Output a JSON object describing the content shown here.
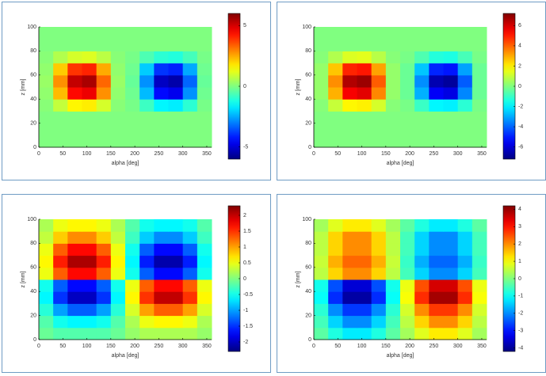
{
  "chart_data": [
    {
      "type": "heatmap",
      "xlabel": "alpha [deg]",
      "ylabel": "z [mm]",
      "colormap": "jet",
      "colorbar": true,
      "xlim": [
        0,
        360
      ],
      "ylim": [
        0,
        100
      ],
      "xticks": [
        0,
        50,
        100,
        150,
        200,
        250,
        300,
        350
      ],
      "yticks": [
        0,
        20,
        40,
        60,
        80,
        100
      ],
      "clim": [
        -6,
        6
      ],
      "cticks": [
        -5,
        0,
        5
      ],
      "x": [
        15,
        45,
        75,
        105,
        135,
        165,
        195,
        225,
        255,
        285,
        315,
        345
      ],
      "y": [
        5,
        15,
        25,
        35,
        45,
        55,
        65,
        75,
        85,
        95
      ],
      "z": [
        [
          0,
          0,
          0,
          0,
          0,
          0,
          0,
          0,
          0,
          0,
          0,
          0
        ],
        [
          0,
          0,
          0,
          0,
          0,
          0,
          0,
          0,
          0,
          0,
          0,
          0
        ],
        [
          0,
          0,
          0,
          0,
          0,
          0,
          0,
          0,
          0,
          0,
          0,
          0
        ],
        [
          0.1,
          0.8,
          1.6,
          1.7,
          1.0,
          0.1,
          -0.1,
          -0.8,
          -1.6,
          -1.7,
          -1.0,
          -0.1
        ],
        [
          0.2,
          2.3,
          4.4,
          4.7,
          2.8,
          0.2,
          -0.2,
          -2.3,
          -4.4,
          -4.7,
          -2.8,
          -0.2
        ],
        [
          0.3,
          2.8,
          5.2,
          5.5,
          3.3,
          0.3,
          -0.3,
          -2.8,
          -5.2,
          -5.5,
          -3.3,
          -0.3
        ],
        [
          0.2,
          2.1,
          3.9,
          4.1,
          2.5,
          0.2,
          -0.2,
          -2.1,
          -3.9,
          -4.1,
          -2.5,
          -0.2
        ],
        [
          0.1,
          0.6,
          1.0,
          1.1,
          0.7,
          0.1,
          -0.1,
          -0.6,
          -1.0,
          -1.1,
          -0.7,
          -0.1
        ],
        [
          0,
          0,
          0,
          0,
          0,
          0,
          0,
          0,
          0,
          0,
          0,
          0
        ],
        [
          0,
          0,
          0,
          0,
          0,
          0,
          0,
          0,
          0,
          0,
          0,
          0
        ]
      ]
    },
    {
      "type": "heatmap",
      "xlabel": "alpha [deg]",
      "ylabel": "z [mm]",
      "colormap": "jet",
      "colorbar": true,
      "xlim": [
        0,
        360
      ],
      "ylim": [
        0,
        100
      ],
      "xticks": [
        0,
        50,
        100,
        150,
        200,
        250,
        300,
        350
      ],
      "yticks": [
        0,
        20,
        40,
        60,
        80,
        100
      ],
      "clim": [
        -7.2,
        7.2
      ],
      "cticks": [
        -6,
        -4,
        -2,
        0,
        2,
        4,
        6
      ],
      "x": [
        15,
        45,
        75,
        105,
        135,
        165,
        195,
        225,
        255,
        285,
        315,
        345
      ],
      "y": [
        5,
        15,
        25,
        35,
        45,
        55,
        65,
        75,
        85,
        95
      ],
      "z": [
        [
          0,
          0,
          0,
          0,
          0,
          0,
          0,
          0,
          0,
          0,
          0,
          0
        ],
        [
          0,
          0,
          0,
          0,
          0,
          0,
          0,
          0,
          0,
          0,
          0,
          0
        ],
        [
          0,
          0,
          0,
          0,
          0,
          0,
          0,
          0,
          0,
          0,
          0,
          0
        ],
        [
          0.1,
          1.0,
          1.9,
          2.0,
          1.2,
          0.1,
          -0.1,
          -1.0,
          -1.9,
          -2.0,
          -1.2,
          -0.1
        ],
        [
          0.3,
          2.9,
          5.5,
          5.8,
          3.5,
          0.3,
          -0.3,
          -2.9,
          -5.5,
          -5.8,
          -3.5,
          -0.3
        ],
        [
          0.3,
          3.4,
          6.5,
          6.8,
          4.1,
          0.3,
          -0.3,
          -3.4,
          -6.5,
          -6.8,
          -4.1,
          -0.3
        ],
        [
          0.3,
          2.6,
          4.9,
          5.1,
          3.1,
          0.3,
          -0.3,
          -2.6,
          -4.9,
          -5.1,
          -3.1,
          -0.3
        ],
        [
          0.1,
          0.7,
          1.3,
          1.4,
          0.8,
          0.1,
          -0.1,
          -0.7,
          -1.3,
          -1.4,
          -0.8,
          -0.1
        ],
        [
          0,
          0,
          0,
          0,
          0,
          0,
          0,
          0,
          0,
          0,
          0,
          0
        ],
        [
          0,
          0,
          0,
          0,
          0,
          0,
          0,
          0,
          0,
          0,
          0,
          0
        ]
      ]
    },
    {
      "type": "heatmap",
      "xlabel": "alpha [deg]",
      "ylabel": "z [mm]",
      "colormap": "jet",
      "colorbar": true,
      "xlim": [
        0,
        360
      ],
      "ylim": [
        0,
        100
      ],
      "xticks": [
        0,
        50,
        100,
        150,
        200,
        250,
        300,
        350
      ],
      "yticks": [
        0,
        20,
        40,
        60,
        80,
        100
      ],
      "clim": [
        -2.3,
        2.3
      ],
      "cticks": [
        -2,
        -1.5,
        -1,
        -0.5,
        0,
        0.5,
        1,
        1.5,
        2
      ],
      "x": [
        15,
        45,
        75,
        105,
        135,
        165,
        195,
        225,
        255,
        285,
        315,
        345
      ],
      "y": [
        5,
        15,
        25,
        35,
        45,
        55,
        65,
        75,
        85,
        95
      ],
      "z": [
        [
          -0.1,
          -0.2,
          -0.2,
          -0.2,
          -0.2,
          -0.1,
          0.1,
          0.2,
          0.2,
          0.2,
          0.2,
          0.1
        ],
        [
          -0.2,
          -0.5,
          -0.6,
          -0.6,
          -0.5,
          -0.2,
          0.2,
          0.5,
          0.6,
          0.6,
          0.5,
          0.2
        ],
        [
          -0.4,
          -1.0,
          -1.3,
          -1.3,
          -1.0,
          -0.4,
          0.4,
          1.0,
          1.3,
          1.3,
          1.0,
          0.4
        ],
        [
          -0.6,
          -1.5,
          -2.0,
          -2.0,
          -1.5,
          -0.6,
          0.6,
          1.5,
          2.0,
          2.0,
          1.5,
          0.6
        ],
        [
          -0.5,
          -1.3,
          -1.7,
          -1.7,
          -1.3,
          -0.5,
          0.5,
          1.3,
          1.7,
          1.7,
          1.3,
          0.5
        ],
        [
          0.5,
          1.3,
          1.7,
          1.7,
          1.3,
          0.5,
          -0.5,
          -1.3,
          -1.7,
          -1.7,
          -1.3,
          -0.5
        ],
        [
          0.6,
          1.6,
          2.1,
          2.1,
          1.6,
          0.6,
          -0.6,
          -1.6,
          -2.1,
          -2.1,
          -1.6,
          -0.6
        ],
        [
          0.5,
          1.3,
          1.7,
          1.7,
          1.3,
          0.5,
          -0.5,
          -1.3,
          -1.7,
          -1.7,
          -1.3,
          -0.5
        ],
        [
          0.3,
          0.8,
          1.1,
          1.1,
          0.8,
          0.3,
          -0.3,
          -0.8,
          -1.1,
          -1.1,
          -0.8,
          -0.3
        ],
        [
          0.2,
          0.5,
          0.6,
          0.6,
          0.5,
          0.2,
          -0.2,
          -0.5,
          -0.6,
          -0.6,
          -0.5,
          -0.2
        ]
      ]
    },
    {
      "type": "heatmap",
      "xlabel": "alpha [deg]",
      "ylabel": "z [mm]",
      "colormap": "jet",
      "colorbar": true,
      "xlim": [
        0,
        360
      ],
      "ylim": [
        0,
        100
      ],
      "xticks": [
        0,
        50,
        100,
        150,
        200,
        250,
        300,
        350
      ],
      "yticks": [
        0,
        20,
        40,
        60,
        80,
        100
      ],
      "clim": [
        -4.2,
        4.2
      ],
      "cticks": [
        -4,
        -3,
        -2,
        -1,
        0,
        1,
        2,
        3,
        4
      ],
      "x": [
        15,
        45,
        75,
        105,
        135,
        165,
        195,
        225,
        255,
        285,
        315,
        345
      ],
      "y": [
        5,
        15,
        25,
        35,
        45,
        55,
        65,
        75,
        85,
        95
      ],
      "z": [
        [
          -0.3,
          -0.8,
          -1.2,
          -1.2,
          -0.8,
          -0.3,
          0.3,
          0.8,
          1.2,
          1.2,
          0.8,
          0.3
        ],
        [
          -0.5,
          -1.4,
          -2.0,
          -2.0,
          -1.4,
          -0.5,
          0.5,
          1.4,
          2.0,
          2.0,
          1.4,
          0.5
        ],
        [
          -0.7,
          -2.0,
          -2.7,
          -2.7,
          -2.0,
          -0.7,
          0.7,
          2.0,
          2.7,
          2.7,
          2.0,
          0.7
        ],
        [
          -1.0,
          -2.8,
          -3.9,
          -3.9,
          -2.8,
          -1.0,
          1.0,
          2.8,
          3.9,
          3.9,
          2.8,
          1.0
        ],
        [
          -0.9,
          -2.5,
          -3.5,
          -3.5,
          -2.5,
          -0.9,
          0.9,
          2.5,
          3.5,
          3.5,
          2.5,
          0.9
        ],
        [
          0.5,
          1.4,
          2.0,
          2.0,
          1.4,
          0.5,
          -0.5,
          -1.4,
          -2.0,
          -2.0,
          -1.4,
          -0.5
        ],
        [
          0.6,
          1.7,
          2.3,
          2.3,
          1.7,
          0.6,
          -0.6,
          -1.7,
          -2.3,
          -2.3,
          -1.7,
          -0.6
        ],
        [
          0.5,
          1.4,
          2.0,
          2.0,
          1.4,
          0.5,
          -0.5,
          -1.4,
          -2.0,
          -2.0,
          -1.4,
          -0.5
        ],
        [
          0.5,
          1.4,
          2.0,
          2.0,
          1.4,
          0.5,
          -0.5,
          -1.4,
          -2.0,
          -2.0,
          -1.4,
          -0.5
        ],
        [
          0.3,
          0.8,
          1.2,
          1.2,
          0.8,
          0.3,
          -0.3,
          -0.8,
          -1.2,
          -1.2,
          -0.8,
          -0.3
        ]
      ]
    }
  ]
}
